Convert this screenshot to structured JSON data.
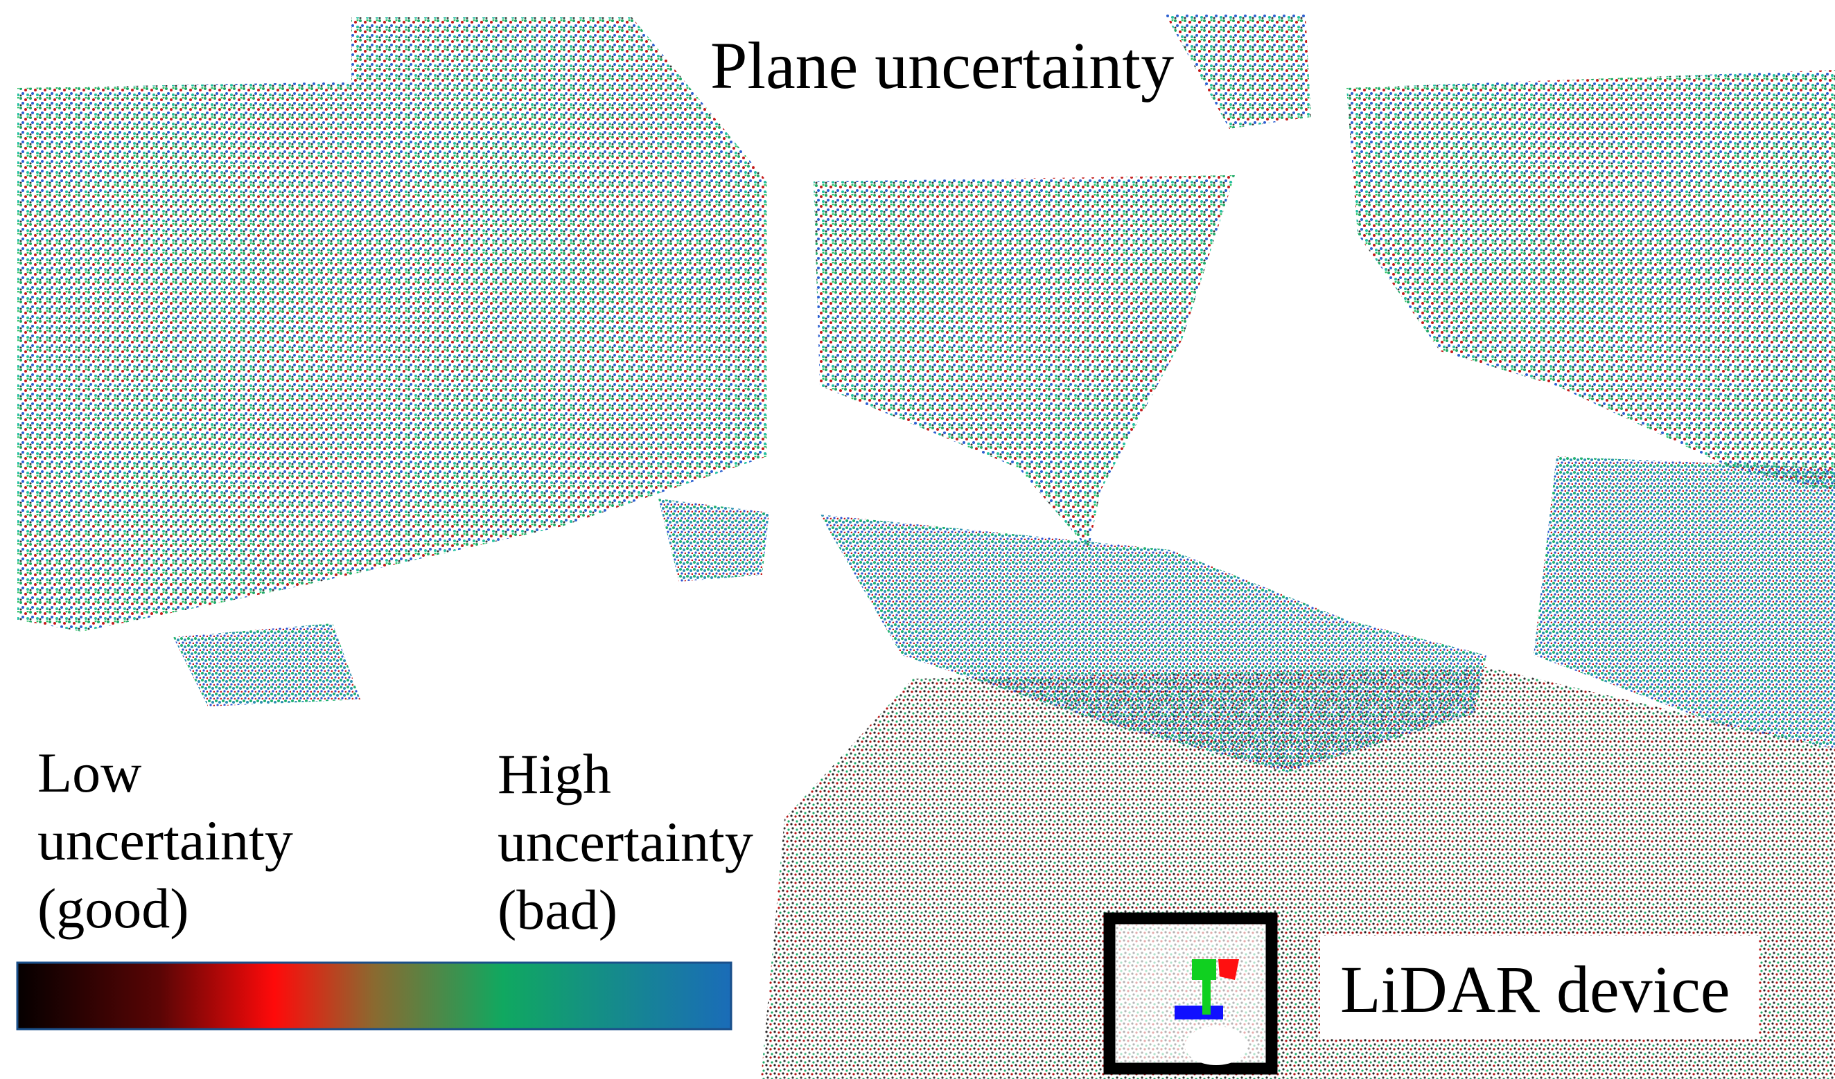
{
  "title": "Plane uncertainty",
  "legend": {
    "low": [
      "Low",
      "uncertainty",
      "(good)"
    ],
    "high": [
      "High",
      "uncertainty",
      "(bad)"
    ]
  },
  "inset": {
    "label": "LiDAR device"
  }
}
